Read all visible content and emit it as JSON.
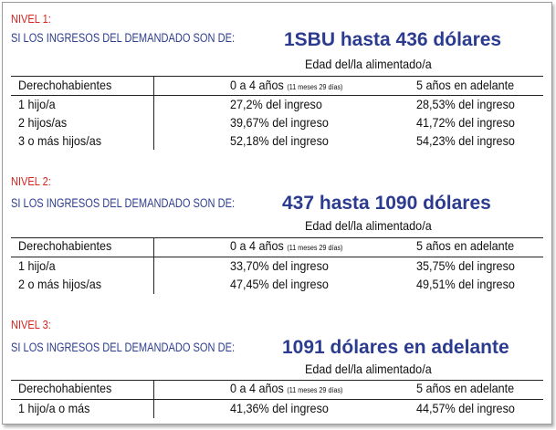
{
  "levels": [
    {
      "nivel": "NIVEL 1:",
      "lead": "SI LOS INGRESOS DEL DEMANDADO SON DE:",
      "amount": "1SBU hasta 436 dólares",
      "edad": "Edad del/la alimentado/a",
      "header": {
        "col1": "Derechohabientes",
        "col2": "0 a 4 años",
        "col2_note": "(11 meses 29 días)",
        "col3": "5 años en adelante"
      },
      "rows": [
        {
          "label": "1 hijo/a",
          "a": "27,2% del ingreso",
          "b": "28,53% del ingreso"
        },
        {
          "label": "2 hijos/as",
          "a": "39,67% del ingreso",
          "b": "41,72% del ingreso"
        },
        {
          "label": "3 o más hijos/as",
          "a": "52,18% del ingreso",
          "b": "54,23% del ingreso"
        }
      ]
    },
    {
      "nivel": "NIVEL 2:",
      "lead": "SI LOS INGRESOS DEL DEMANDADO SON DE:",
      "amount": "437 hasta 1090 dólares",
      "edad": "Edad del/la alimentado/a",
      "header": {
        "col1": "Derechohabientes",
        "col2": "0 a 4 años",
        "col2_note": "(11 meses 29 días)",
        "col3": "5 años en adelante"
      },
      "rows": [
        {
          "label": "1 hijo/a",
          "a": "33,70% del ingreso",
          "b": "35,75% del ingreso"
        },
        {
          "label": "2 o más hijos/as",
          "a": "47,45% del ingreso",
          "b": "49,51% del ingreso"
        }
      ]
    },
    {
      "nivel": "NIVEL 3:",
      "lead": "SI LOS INGRESOS DEL DEMANDADO SON DE:",
      "amount": "1091 dólares en adelante",
      "edad": "Edad del/la alimentado/a",
      "header": {
        "col1": "Derechohabientes",
        "col2": "0 a 4 años",
        "col2_note": "(11 meses 29 días)",
        "col3": "5 años en adelante"
      },
      "rows": [
        {
          "label": "1 hijo/a o más",
          "a": "41,36% del ingreso",
          "b": "44,57% del ingreso"
        }
      ]
    }
  ]
}
